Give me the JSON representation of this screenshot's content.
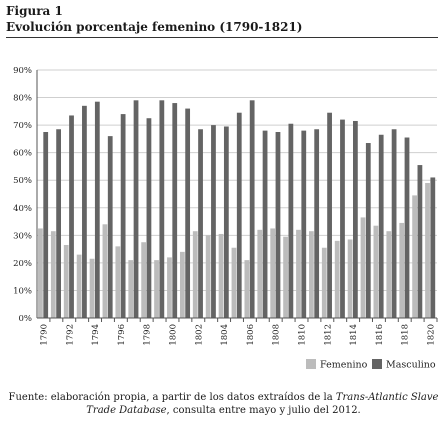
{
  "figure": {
    "label": "Figura 1",
    "title": "Evolución porcentaje femenino (1790-1821)"
  },
  "source": {
    "line1_pre": "Fuente: elaboración propia, a partir de los datos extraídos de la ",
    "line1_italic": "Trans-Atlantic Slave",
    "line2_italic": "Trade Database",
    "line2_post": ", consulta entre mayo y julio del 2012."
  },
  "colors": {
    "femenino": "#bcbcbc",
    "masculino": "#646464",
    "grid": "#cfcfcf",
    "axis": "#555555"
  },
  "chart_data": {
    "type": "bar",
    "title": "Evolución porcentaje femenino (1790-1821)",
    "xlabel": "",
    "ylabel": "",
    "ylim": [
      0,
      90
    ],
    "yticks": [
      "0%",
      "10%",
      "20%",
      "30%",
      "40%",
      "50%",
      "60%",
      "70%",
      "80%",
      "90%"
    ],
    "grid": true,
    "legend_position": "bottom-right",
    "categories": [
      1790,
      1791,
      1792,
      1793,
      1794,
      1795,
      1796,
      1797,
      1798,
      1799,
      1800,
      1801,
      1802,
      1803,
      1804,
      1805,
      1806,
      1807,
      1808,
      1809,
      1810,
      1811,
      1812,
      1813,
      1814,
      1815,
      1816,
      1817,
      1818,
      1819,
      1820
    ],
    "tick_labels": [
      "1790",
      "1792",
      "1794",
      "1796",
      "1798",
      "1800",
      "1802",
      "1804",
      "1806",
      "1808",
      "1810",
      "1812",
      "1814",
      "1816",
      "1818",
      "1820"
    ],
    "series": [
      {
        "name": "Femenino",
        "values": [
          32.5,
          31.5,
          26.5,
          23,
          21.5,
          34,
          26,
          21,
          27.5,
          21,
          22,
          24,
          31.5,
          30,
          30.5,
          25.5,
          21,
          32,
          32.5,
          29.5,
          32,
          31.5,
          25.5,
          28,
          28.5,
          36.5,
          33.5,
          31.5,
          34.5,
          44.5,
          49
        ]
      },
      {
        "name": "Masculino",
        "values": [
          67.5,
          68.5,
          73.5,
          77,
          78.5,
          66,
          74,
          79,
          72.5,
          79,
          78,
          76,
          68.5,
          70,
          69.5,
          74.5,
          79,
          68,
          67.5,
          70.5,
          68,
          68.5,
          74.5,
          72,
          71.5,
          63.5,
          66.5,
          68.5,
          65.5,
          55.5,
          51
        ]
      }
    ]
  }
}
